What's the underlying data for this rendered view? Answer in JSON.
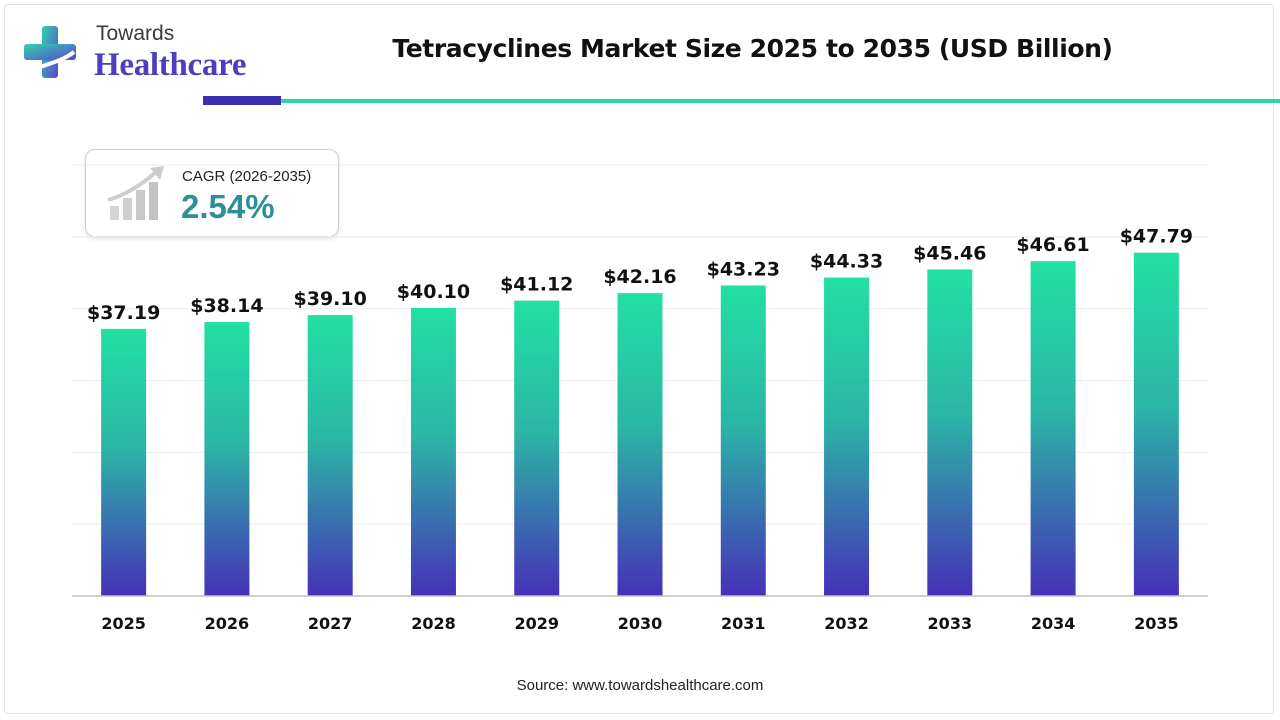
{
  "brand": {
    "top": "Towards",
    "main": "Healthcare",
    "colors": {
      "purple": "#4b3fc0",
      "teal": "#2fd3a9"
    }
  },
  "title": "Tetracyclines Market Size 2025 to 2035 (USD Billion)",
  "cagr": {
    "label": "CAGR (2026-2035)",
    "value": "2.54%",
    "icon": "bar-growth-icon"
  },
  "source": "Source: www.towardshealthcare.com",
  "chart_data": {
    "type": "bar",
    "title": "Tetracyclines Market Size 2025 to 2035 (USD Billion)",
    "categories": [
      "2025",
      "2026",
      "2027",
      "2028",
      "2029",
      "2030",
      "2031",
      "2032",
      "2033",
      "2034",
      "2035"
    ],
    "values": [
      37.19,
      38.14,
      39.1,
      40.1,
      41.12,
      42.16,
      43.23,
      44.33,
      45.46,
      46.61,
      47.79
    ],
    "value_labels": [
      "$37.19",
      "$38.14",
      "$39.10",
      "$40.10",
      "$41.12",
      "$42.16",
      "$43.23",
      "$44.33",
      "$45.46",
      "$46.61",
      "$47.79"
    ],
    "ylim": [
      0,
      60
    ],
    "grid": true,
    "bar_gradient": {
      "top": "#22e0a2",
      "bottom": "#4630b8"
    }
  }
}
